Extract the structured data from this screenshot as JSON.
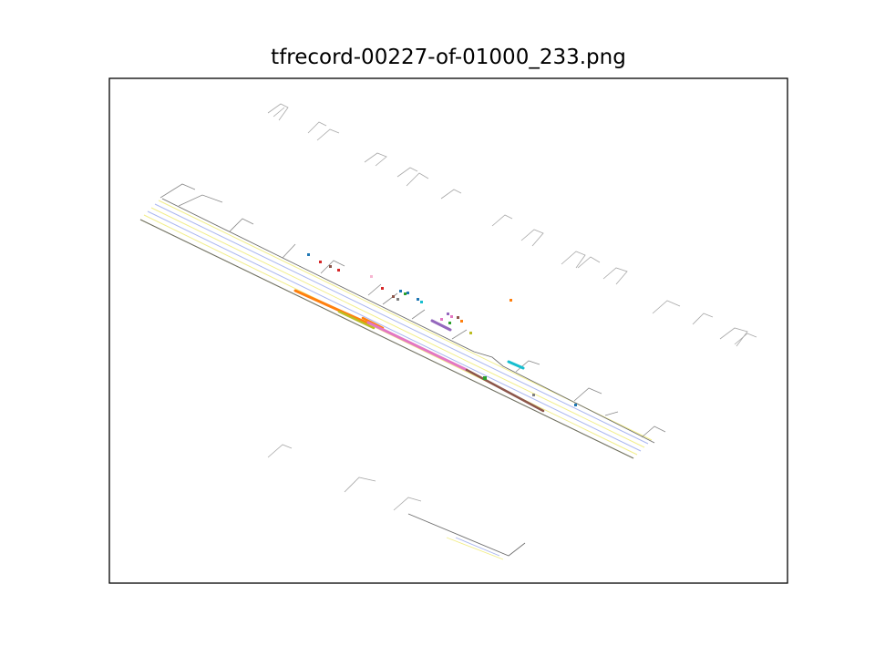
{
  "figure": {
    "title": "tfrecord-00227-of-01000_233.png"
  },
  "colors": {
    "frame": "#000000",
    "road_edge": "#6e6e6e",
    "lane_yellow": "#f2ee8a",
    "lane_blue": "#a9b6f0",
    "crosswalk": "#b0b0b0",
    "traj_orange": "#ff7f0e",
    "traj_olive": "#bcbd22",
    "traj_pink": "#e377c2",
    "traj_brown": "#8c564b",
    "traj_purple": "#9467bd",
    "traj_cyan": "#17becf",
    "traj_green": "#2ca02c",
    "traj_red": "#d62728",
    "traj_blue": "#1f77b4"
  }
}
